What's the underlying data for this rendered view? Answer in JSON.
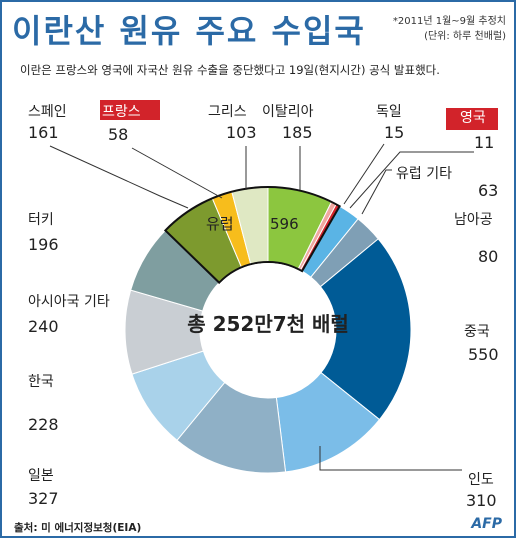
{
  "header": {
    "title": "이란산 원유 주요 수입국",
    "note_line1": "*2011년 1월~9월 추정치",
    "note_line2": "(단위: 하루 천배럴)",
    "description": "이란은 프랑스와 영국에 자국산 원유 수출을 중단했다고 19일(현지시간) 공식 발표했다."
  },
  "footer": {
    "source": "출처: 미 에너지정보청(EIA)",
    "logo": "AFP"
  },
  "colors": {
    "frame": "#2b6aa6",
    "title": "#2b6aa6",
    "highlight_label_bg": "#d2232a"
  },
  "chart_data": {
    "type": "pie",
    "donut": true,
    "center_label": "총 252만7천 배럴",
    "group": {
      "label": "유럽",
      "value": 596,
      "members": [
        "스페인",
        "프랑스",
        "그리스",
        "이탈리아",
        "독일",
        "영국"
      ]
    },
    "slices": [
      {
        "label": "이탈리아",
        "value": 185,
        "color": "#8cc63f"
      },
      {
        "label": "독일",
        "value": 15,
        "color": "#f0a8a0"
      },
      {
        "label": "영국",
        "value": 11,
        "color": "#d2232a",
        "highlight": true
      },
      {
        "label": "유럽 기타",
        "value": 63,
        "color": "#5ab4e5"
      },
      {
        "label": "남아공",
        "value": 80,
        "color": "#7f9fb5"
      },
      {
        "label": "중국",
        "value": 550,
        "color": "#005b96"
      },
      {
        "label": "인도",
        "value": 310,
        "color": "#7bbde8"
      },
      {
        "label": "일본",
        "value": 327,
        "color": "#8fb0c6"
      },
      {
        "label": "한국",
        "value": 228,
        "color": "#a9d2ea"
      },
      {
        "label": "아시아국 기타",
        "value": 240,
        "color": "#c9ced3"
      },
      {
        "label": "터키",
        "value": 196,
        "color": "#7f9ea0"
      },
      {
        "label": "스페인",
        "value": 161,
        "color": "#7d9a2e"
      },
      {
        "label": "프랑스",
        "value": 58,
        "color": "#f7bd1c",
        "highlight": true
      },
      {
        "label": "그리스",
        "value": 103,
        "color": "#dfe8c3"
      }
    ]
  }
}
